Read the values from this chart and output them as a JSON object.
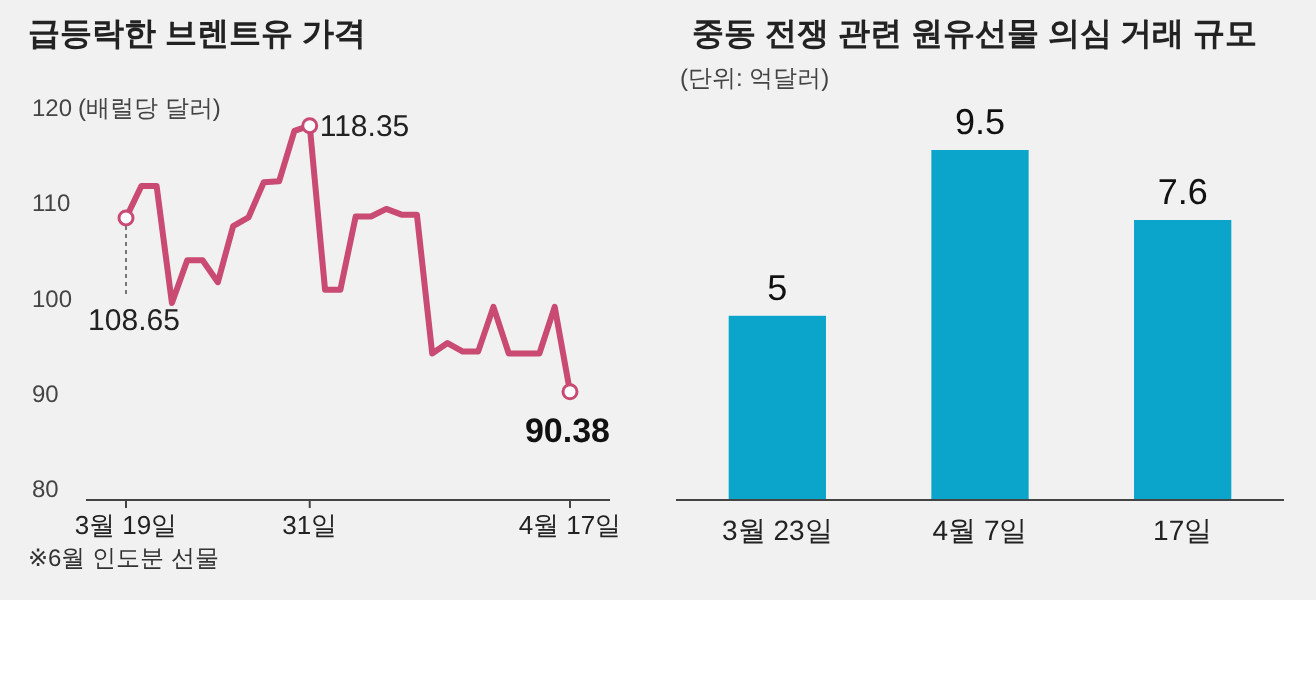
{
  "chart_data": [
    {
      "type": "line",
      "title": "급등락한 브렌트유 가격",
      "ylabel": "(배럴당 달러)",
      "categories": [
        "3월 19일",
        null,
        null,
        null,
        null,
        null,
        null,
        null,
        null,
        null,
        null,
        null,
        "31일",
        null,
        null,
        null,
        null,
        null,
        null,
        null,
        null,
        null,
        null,
        null,
        null,
        null,
        null,
        null,
        null,
        "4월 17일"
      ],
      "ylim": [
        79,
        120
      ],
      "yticks": [
        80,
        90,
        100,
        110,
        120
      ],
      "grid": false,
      "marker": "none",
      "line_style": "solid",
      "series": [
        {
          "color": "#c94a72",
          "values": [
            108.65,
            112.0,
            112.0,
            99.7,
            104.2,
            104.2,
            101.9,
            107.8,
            108.7,
            112.4,
            112.5,
            117.8,
            118.35,
            101.1,
            101.1,
            108.8,
            108.8,
            109.6,
            109.0,
            109.0,
            94.4,
            95.5,
            94.6,
            94.6,
            99.3,
            94.4,
            94.4,
            94.4,
            99.3,
            90.38
          ]
        }
      ],
      "annotations": [
        {
          "text": "108.65",
          "x": "3월 19일",
          "y": 108.65
        },
        {
          "text": "118.35",
          "x": "31일",
          "y": 118.35
        },
        {
          "text": "90.38",
          "x": "4월 17일",
          "y": 90.38
        },
        "※6월 인도분 선물"
      ]
    },
    {
      "type": "bar",
      "title": "중동 전쟁 관련 원유선물 의심 거래 규모",
      "subtitle": "(단위: 억달러)",
      "categories": [
        "3월 23일",
        "4월 7일",
        "17일"
      ],
      "values": [
        5,
        9.5,
        7.6
      ],
      "colors": [
        "#0ba5cc",
        "#0ba5cc",
        "#0ba5cc"
      ],
      "data_labels": true
    }
  ]
}
